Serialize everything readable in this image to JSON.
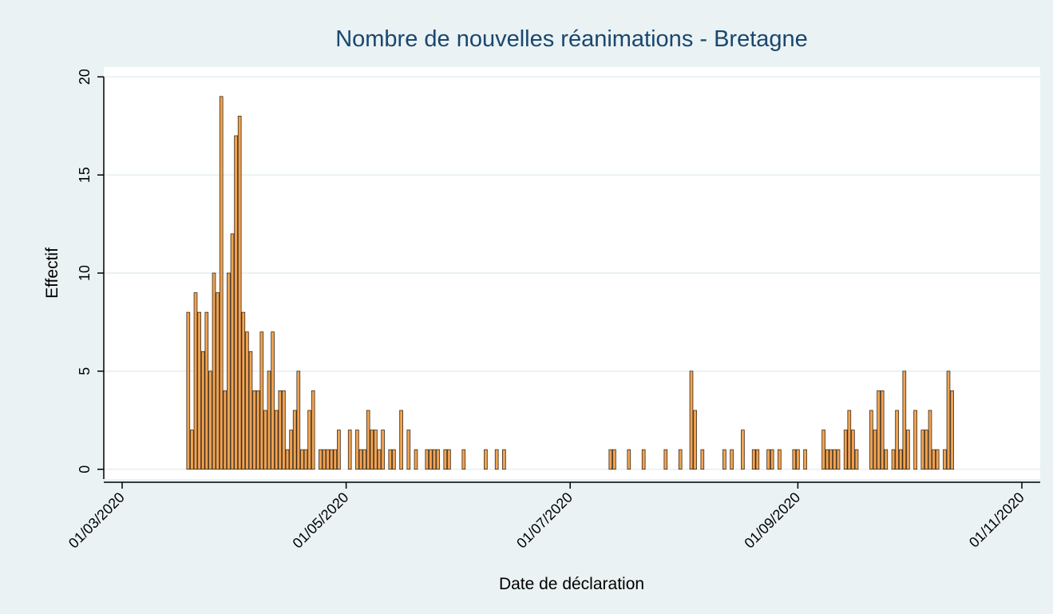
{
  "chart_data": {
    "type": "bar",
    "title": "Nombre de nouvelles réanimations - Bretagne",
    "x_label": "Date de déclaration",
    "y_label": "Effectif",
    "color": "#f0a352",
    "x": [
      "19/03/2020",
      "20/03/2020",
      "21/03/2020",
      "22/03/2020",
      "23/03/2020",
      "24/03/2020",
      "25/03/2020",
      "26/03/2020",
      "27/03/2020",
      "28/03/2020",
      "29/03/2020",
      "30/03/2020",
      "31/03/2020",
      "01/04/2020",
      "02/04/2020",
      "03/04/2020",
      "04/04/2020",
      "05/04/2020",
      "06/04/2020",
      "07/04/2020",
      "08/04/2020",
      "09/04/2020",
      "10/04/2020",
      "11/04/2020",
      "12/04/2020",
      "13/04/2020",
      "14/04/2020",
      "15/04/2020",
      "16/04/2020",
      "17/04/2020",
      "18/04/2020",
      "19/04/2020",
      "20/04/2020",
      "21/04/2020",
      "22/04/2020",
      "24/04/2020",
      "25/04/2020",
      "26/04/2020",
      "27/04/2020",
      "28/04/2020",
      "29/04/2020",
      "02/05/2020",
      "04/05/2020",
      "05/05/2020",
      "06/05/2020",
      "07/05/2020",
      "08/05/2020",
      "09/05/2020",
      "10/05/2020",
      "11/05/2020",
      "13/05/2020",
      "14/05/2020",
      "16/05/2020",
      "18/05/2020",
      "20/05/2020",
      "23/05/2020",
      "24/05/2020",
      "25/05/2020",
      "26/05/2020",
      "28/05/2020",
      "29/05/2020",
      "02/06/2020",
      "08/06/2020",
      "11/06/2020",
      "13/06/2020",
      "12/07/2020",
      "13/07/2020",
      "17/07/2020",
      "21/07/2020",
      "27/07/2020",
      "31/07/2020",
      "03/08/2020",
      "04/08/2020",
      "06/08/2020",
      "12/08/2020",
      "14/08/2020",
      "17/08/2020",
      "20/08/2020",
      "21/08/2020",
      "24/08/2020",
      "25/08/2020",
      "27/08/2020",
      "31/08/2020",
      "01/09/2020",
      "03/09/2020",
      "08/09/2020",
      "09/09/2020",
      "10/09/2020",
      "11/09/2020",
      "12/09/2020",
      "14/09/2020",
      "15/09/2020",
      "16/09/2020",
      "17/09/2020",
      "21/09/2020",
      "22/09/2020",
      "23/09/2020",
      "24/09/2020",
      "25/09/2020",
      "27/09/2020",
      "28/09/2020",
      "29/09/2020",
      "30/09/2020",
      "01/10/2020",
      "03/10/2020",
      "05/10/2020",
      "06/10/2020",
      "07/10/2020",
      "08/10/2020",
      "09/10/2020",
      "11/10/2020",
      "12/10/2020",
      "13/10/2020"
    ],
    "values": [
      8,
      2,
      9,
      8,
      6,
      8,
      5,
      10,
      9,
      19,
      4,
      10,
      12,
      17,
      18,
      8,
      7,
      6,
      4,
      4,
      7,
      3,
      5,
      7,
      3,
      4,
      4,
      1,
      2,
      3,
      5,
      1,
      1,
      3,
      4,
      1,
      1,
      1,
      1,
      1,
      2,
      2,
      2,
      1,
      1,
      3,
      2,
      2,
      1,
      2,
      1,
      1,
      3,
      2,
      1,
      1,
      1,
      1,
      1,
      1,
      1,
      1,
      1,
      1,
      1,
      1,
      1,
      1,
      1,
      1,
      1,
      5,
      3,
      1,
      1,
      1,
      2,
      1,
      1,
      1,
      1,
      1,
      1,
      1,
      1,
      2,
      1,
      1,
      1,
      1,
      2,
      3,
      2,
      1,
      3,
      2,
      4,
      4,
      1,
      1,
      3,
      1,
      5,
      2,
      3,
      2,
      2,
      3,
      1,
      1,
      1,
      5,
      4
    ],
    "xlim": [
      "25/02/2020",
      "06/11/2020"
    ],
    "xticks": [
      "01/03/2020",
      "01/05/2020",
      "01/07/2020",
      "01/09/2020",
      "01/11/2020"
    ],
    "ylim": [
      -0.5,
      20.5
    ],
    "yticks": [
      0,
      5,
      10,
      15,
      20
    ],
    "grid": true
  }
}
